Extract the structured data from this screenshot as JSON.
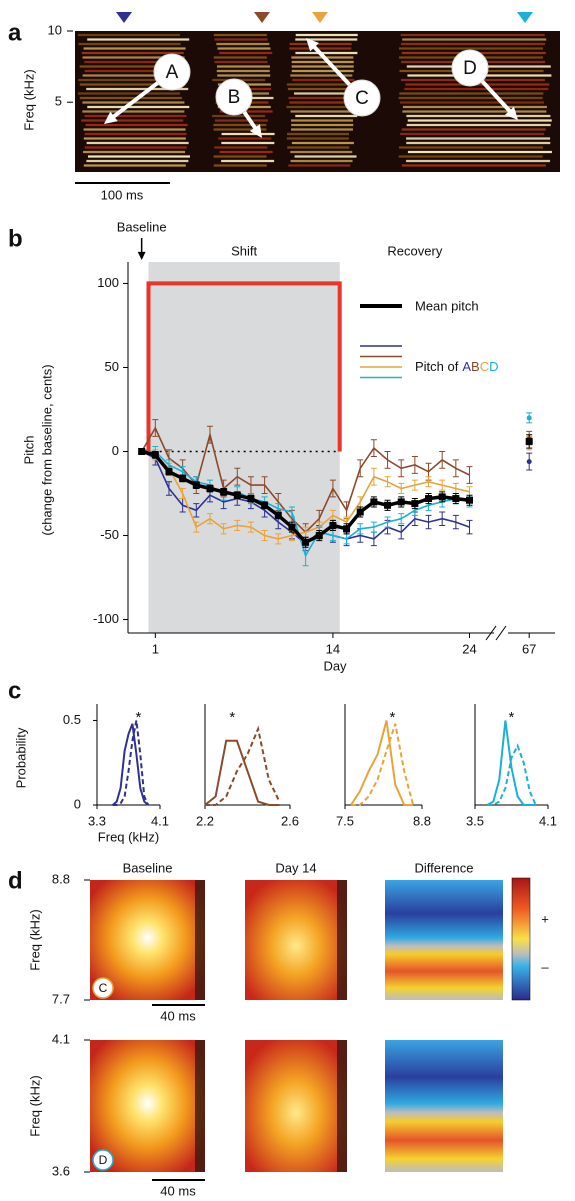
{
  "chart_data": [
    {
      "type": "spectrogram",
      "panel": "a",
      "ylabel": "Freq (kHz)",
      "ylim": [
        0.1,
        10
      ],
      "yticks": [
        5,
        10
      ],
      "scalebar": "100 ms",
      "labels": [
        {
          "text": "A",
          "color": "#2e3192"
        },
        {
          "text": "B",
          "color": "#8b4a2b"
        },
        {
          "text": "C",
          "color": "#e8a33a"
        },
        {
          "text": "D",
          "color": "#1ab0d8"
        }
      ]
    },
    {
      "type": "line",
      "panel": "b",
      "ylabel": [
        "Pitch",
        "(change from baseline, cents)"
      ],
      "xlabel": "Day",
      "ylim": [
        -108,
        108
      ],
      "yticks": [
        -100,
        -50,
        0,
        50,
        100
      ],
      "xlim": [
        -1,
        68.5
      ],
      "xbreak": [
        25.5,
        66
      ],
      "xticks": [
        1,
        14,
        24,
        67
      ],
      "shade": [
        0.5,
        14.5
      ],
      "shade_labels": [
        "Shift",
        "Recovery"
      ],
      "baseline_label": "Baseline",
      "zero_line": true,
      "target": {
        "x": [
          0,
          0.5,
          0.5,
          14.5,
          14.5,
          68.5
        ],
        "values": [
          0,
          0,
          100,
          100,
          0,
          0
        ],
        "color": "#e8342a"
      },
      "legend_title": "Pitch of",
      "x": [
        0,
        1,
        2,
        3,
        4,
        5,
        6,
        7,
        8,
        9,
        10,
        11,
        12,
        13,
        14,
        15,
        16,
        17,
        18,
        19,
        20,
        21,
        22,
        23,
        24,
        67
      ],
      "series": [
        {
          "name": "Mean pitch",
          "color": "#000000",
          "values": [
            0,
            -2,
            -12,
            -16,
            -20,
            -22,
            -24,
            -26,
            -28,
            -32,
            -38,
            -45,
            -54,
            -50,
            -44,
            -46,
            -36,
            -30,
            -32,
            -30,
            -31,
            -28,
            -27,
            -28,
            -29,
            6
          ],
          "errors": [
            1,
            2,
            2,
            2,
            2,
            2,
            2,
            2,
            2,
            2,
            2,
            3,
            3,
            3,
            3,
            3,
            3,
            3,
            3,
            3,
            3,
            3,
            3,
            3,
            3,
            4
          ]
        },
        {
          "name": "A",
          "color": "#2e3192",
          "values": [
            0,
            -4,
            -22,
            -32,
            -35,
            -26,
            -30,
            -28,
            -30,
            -35,
            -42,
            -48,
            -55,
            -48,
            -50,
            -52,
            -50,
            -52,
            -45,
            -48,
            -40,
            -42,
            -40,
            -42,
            -45,
            -6
          ],
          "errors": [
            1,
            4,
            4,
            4,
            4,
            4,
            4,
            4,
            4,
            4,
            4,
            4,
            4,
            4,
            4,
            4,
            4,
            4,
            4,
            4,
            4,
            4,
            4,
            4,
            4,
            5
          ]
        },
        {
          "name": "B",
          "color": "#8b4a2b",
          "values": [
            0,
            14,
            -4,
            -10,
            -20,
            10,
            -22,
            -15,
            -20,
            -20,
            -30,
            -40,
            -48,
            -40,
            -22,
            -35,
            -10,
            2,
            -5,
            -10,
            -8,
            -12,
            -5,
            -10,
            -14,
            8
          ],
          "errors": [
            1,
            5,
            5,
            5,
            5,
            5,
            5,
            5,
            5,
            5,
            5,
            5,
            5,
            5,
            5,
            5,
            5,
            5,
            5,
            5,
            5,
            5,
            5,
            5,
            5,
            4
          ]
        },
        {
          "name": "C",
          "color": "#e8a33a",
          "values": [
            0,
            -2,
            -10,
            -25,
            -45,
            -40,
            -46,
            -44,
            -45,
            -50,
            -52,
            -50,
            -48,
            -45,
            -38,
            -42,
            -30,
            -15,
            -18,
            -22,
            -20,
            -18,
            -20,
            -22,
            -24,
            5
          ],
          "errors": [
            1,
            3,
            3,
            3,
            3,
            3,
            3,
            3,
            3,
            3,
            3,
            3,
            3,
            3,
            3,
            3,
            3,
            5,
            3,
            3,
            3,
            3,
            3,
            3,
            3,
            4
          ]
        },
        {
          "name": "D",
          "color": "#1ab0d8",
          "values": [
            0,
            0,
            -8,
            -12,
            -18,
            -20,
            -26,
            -24,
            -28,
            -30,
            -34,
            -36,
            -62,
            -48,
            -50,
            -52,
            -46,
            -45,
            -42,
            -40,
            -35,
            -32,
            -30,
            -28,
            -30,
            20
          ],
          "errors": [
            1,
            3,
            3,
            3,
            3,
            3,
            3,
            3,
            3,
            3,
            3,
            3,
            6,
            3,
            3,
            3,
            3,
            3,
            3,
            3,
            3,
            3,
            3,
            3,
            3,
            3
          ]
        }
      ]
    },
    {
      "type": "distribution",
      "panel": "c",
      "ylabel": "Probability",
      "xlabel": "Freq (kHz)",
      "annotation": "*",
      "ylim": [
        0,
        0.55
      ],
      "yticks": [
        0,
        0.5
      ],
      "xlim": [
        3.3,
        4.1
      ],
      "xticks": [
        3.3,
        4.1
      ],
      "x": [
        3.5,
        3.55,
        3.6,
        3.65,
        3.7,
        3.75,
        3.8,
        3.85,
        3.9,
        3.95
      ],
      "series": [
        {
          "color": "#2e3192",
          "dashed": false,
          "values": [
            0,
            0.02,
            0.1,
            0.32,
            0.42,
            0.48,
            0.3,
            0.1,
            0.02,
            0
          ]
        },
        {
          "color": "#2e3192",
          "dashed": true,
          "values": [
            0,
            0,
            0.01,
            0.05,
            0.2,
            0.38,
            0.5,
            0.3,
            0.05,
            0
          ]
        }
      ]
    },
    {
      "type": "distribution",
      "annotation": "*",
      "ylim": [
        0,
        0.55
      ],
      "xlim": [
        2.2,
        2.6
      ],
      "xticks": [
        2.2,
        2.6
      ],
      "x": [
        2.2,
        2.25,
        2.3,
        2.35,
        2.4,
        2.45,
        2.5,
        2.55
      ],
      "series": [
        {
          "color": "#8b4a2b",
          "dashed": false,
          "values": [
            0,
            0.05,
            0.38,
            0.38,
            0.2,
            0.02,
            0,
            0
          ]
        },
        {
          "color": "#8b4a2b",
          "dashed": true,
          "values": [
            0,
            0,
            0.05,
            0.2,
            0.3,
            0.45,
            0.15,
            0.02
          ]
        }
      ]
    },
    {
      "type": "distribution",
      "annotation": "*",
      "ylim": [
        0,
        0.55
      ],
      "xlim": [
        7.5,
        8.8
      ],
      "xticks": [
        7.5,
        8.8
      ],
      "x": [
        7.6,
        7.75,
        7.9,
        8.05,
        8.2,
        8.35,
        8.5,
        8.65
      ],
      "series": [
        {
          "color": "#e8a33a",
          "dashed": false,
          "values": [
            0,
            0.08,
            0.2,
            0.3,
            0.5,
            0.12,
            0,
            0
          ]
        },
        {
          "color": "#e8a33a",
          "dashed": true,
          "values": [
            0,
            0,
            0.05,
            0.15,
            0.32,
            0.48,
            0.2,
            0
          ]
        }
      ]
    },
    {
      "type": "distribution",
      "annotation": "*",
      "ylim": [
        0,
        0.55
      ],
      "xlim": [
        3.5,
        4.1
      ],
      "xticks": [
        3.5,
        4.1
      ],
      "x": [
        3.6,
        3.65,
        3.7,
        3.75,
        3.8,
        3.85,
        3.9,
        3.95,
        4.0
      ],
      "series": [
        {
          "color": "#1ab0d8",
          "dashed": false,
          "values": [
            0,
            0.02,
            0.15,
            0.5,
            0.22,
            0.05,
            0,
            0,
            0
          ]
        },
        {
          "color": "#1ab0d8",
          "dashed": true,
          "values": [
            0,
            0,
            0.02,
            0.1,
            0.28,
            0.35,
            0.25,
            0.08,
            0
          ]
        }
      ]
    },
    {
      "type": "heatmap",
      "panel": "d",
      "columns": [
        "Baseline",
        "Day 14",
        "Difference"
      ],
      "ylabel": "Freq (kHz)",
      "scalebar": "40 ms",
      "colorbar_labels": [
        "+",
        "–"
      ],
      "rows": [
        {
          "label": "C",
          "color": "#e8a33a",
          "ylim": [
            7.7,
            8.8
          ],
          "yticks": [
            7.7,
            8.8
          ]
        },
        {
          "label": "D",
          "color": "#1ab0d8",
          "ylim": [
            3.6,
            4.1
          ],
          "yticks": [
            3.6,
            4.1
          ]
        }
      ]
    }
  ]
}
